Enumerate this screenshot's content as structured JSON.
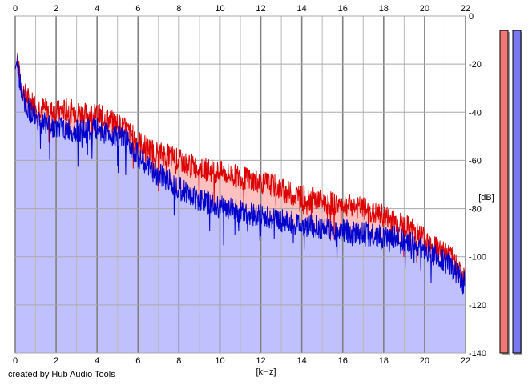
{
  "chart_data": {
    "type": "area",
    "title": "",
    "xlabel": "[kHz]",
    "ylabel": "[dB]",
    "xlim": [
      0,
      22
    ],
    "ylim": [
      -140,
      0
    ],
    "x_ticks": [
      "0",
      "2",
      "4",
      "6",
      "8",
      "10",
      "12",
      "14",
      "16",
      "18",
      "20",
      "22"
    ],
    "y_ticks": [
      "0",
      "-20",
      "-40",
      "-60",
      "-80",
      "-100",
      "-120",
      "-140"
    ],
    "grid": true,
    "series": [
      {
        "color": "#dd0000",
        "fill": "#ffc0c0",
        "x": [
          0,
          0.1,
          0.3,
          0.6,
          1,
          1.5,
          2,
          2.5,
          3,
          3.5,
          4,
          4.5,
          5,
          5.5,
          6,
          6.5,
          7,
          7.5,
          8,
          8.5,
          9,
          9.5,
          10,
          10.5,
          11,
          11.5,
          12,
          12.5,
          13,
          13.5,
          14,
          14.5,
          15,
          15.5,
          16,
          16.5,
          17,
          17.5,
          18,
          18.5,
          19,
          19.5,
          20,
          20.5,
          21,
          21.5,
          22
        ],
        "values": [
          -22,
          -18,
          -30,
          -34,
          -37,
          -39,
          -40,
          -39,
          -40,
          -41,
          -41,
          -43,
          -45,
          -48,
          -52,
          -55,
          -57,
          -58,
          -60,
          -62,
          -63,
          -64,
          -65,
          -66,
          -67,
          -68,
          -69,
          -70,
          -72,
          -74,
          -75,
          -76,
          -77,
          -78,
          -78,
          -79,
          -80,
          -82,
          -83,
          -85,
          -87,
          -89,
          -92,
          -95,
          -98,
          -102,
          -110
        ]
      },
      {
        "color": "#0000cc",
        "fill": "#c0c0ff",
        "x": [
          0,
          0.1,
          0.3,
          0.6,
          1,
          1.5,
          2,
          2.5,
          3,
          3.5,
          4,
          4.5,
          5,
          5.5,
          6,
          6.5,
          7,
          7.5,
          8,
          8.5,
          9,
          9.5,
          10,
          10.5,
          11,
          11.5,
          12,
          12.5,
          13,
          13.5,
          14,
          14.5,
          15,
          15.5,
          16,
          16.5,
          17,
          17.5,
          18,
          18.5,
          19,
          19.5,
          20,
          20.5,
          21,
          21.5,
          22
        ],
        "values": [
          -22,
          -18,
          -32,
          -38,
          -42,
          -45,
          -46,
          -47,
          -48,
          -48,
          -47,
          -48,
          -50,
          -52,
          -58,
          -63,
          -66,
          -68,
          -71,
          -74,
          -76,
          -78,
          -79,
          -80,
          -81,
          -82,
          -83,
          -84,
          -85,
          -86,
          -87,
          -87,
          -88,
          -89,
          -89,
          -90,
          -90,
          -91,
          -92,
          -92,
          -93,
          -95,
          -97,
          -99,
          -102,
          -106,
          -112
        ]
      }
    ],
    "level_meters": [
      {
        "color": "#f07878",
        "top_db": -6
      },
      {
        "color": "#7878f0",
        "top_db": -6
      }
    ]
  },
  "footer": {
    "credit": "created by Hub Audio Tools"
  }
}
